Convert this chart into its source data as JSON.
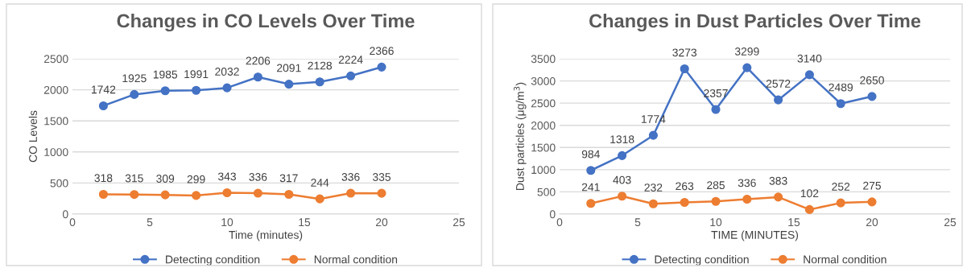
{
  "chart_data": [
    {
      "type": "line",
      "title": "Changes in CO Levels Over Time",
      "xlabel": "Time (minutes)",
      "ylabel": "CO Levels",
      "x": [
        2,
        4,
        6,
        8,
        10,
        12,
        14,
        16,
        18,
        20
      ],
      "xlim": [
        0,
        25
      ],
      "xticks": [
        0,
        5,
        10,
        15,
        20,
        25
      ],
      "ylim": [
        0,
        2500
      ],
      "yticks": [
        0,
        500,
        1000,
        1500,
        2000,
        2500
      ],
      "grid": "y",
      "legend": "bottom",
      "marker": "circle",
      "line_style": "solid",
      "data_labels": true,
      "series": [
        {
          "name": "Detecting condition",
          "color": "#4472c4",
          "values": [
            1742,
            1925,
            1985,
            1991,
            2032,
            2206,
            2091,
            2128,
            2224,
            2366
          ]
        },
        {
          "name": "Normal condition",
          "color": "#ed7d31",
          "values": [
            318,
            315,
            309,
            299,
            343,
            336,
            317,
            244,
            336,
            335
          ]
        }
      ]
    },
    {
      "type": "line",
      "title": "Changes in Dust Particles Over Time",
      "xlabel": "TIME (MINUTES)",
      "ylabel": "Dust particles (μg/m$^{3}$)",
      "x": [
        2,
        4,
        6,
        8,
        10,
        12,
        14,
        16,
        18,
        20
      ],
      "xlim": [
        0,
        25
      ],
      "xticks": [
        0,
        5,
        10,
        15,
        20,
        25
      ],
      "ylim": [
        0,
        3500
      ],
      "yticks": [
        0,
        500,
        1000,
        1500,
        2000,
        2500,
        3000,
        3500
      ],
      "grid": "y",
      "legend": "bottom",
      "marker": "circle",
      "line_style": "solid",
      "data_labels": true,
      "series": [
        {
          "name": "Detecting condition",
          "color": "#4472c4",
          "values": [
            984,
            1318,
            1774,
            3273,
            2357,
            3299,
            2572,
            3140,
            2489,
            2650
          ]
        },
        {
          "name": "Normal condition",
          "color": "#ed7d31",
          "values": [
            241,
            403,
            232,
            263,
            285,
            336,
            383,
            102,
            252,
            275
          ]
        }
      ]
    }
  ]
}
